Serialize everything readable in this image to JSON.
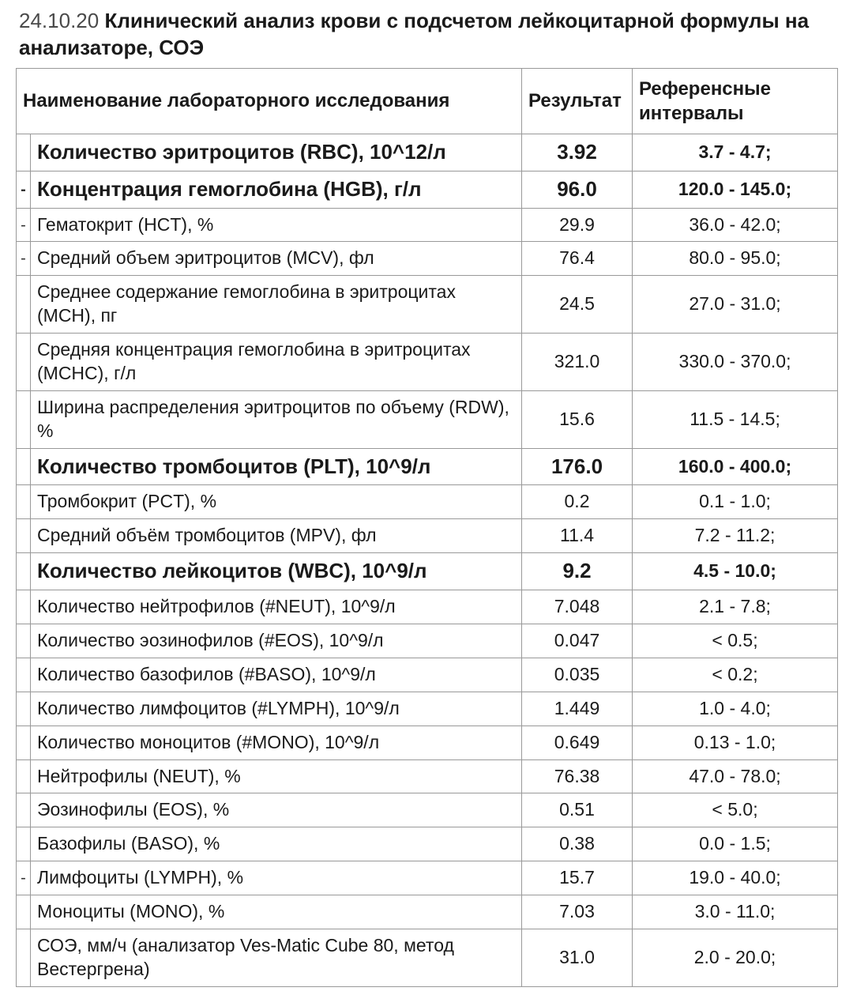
{
  "header": {
    "date": "24.10.20",
    "title": "Клинический анализ крови с подсчетом лейкоцитарной формулы на анализаторе, СОЭ"
  },
  "table": {
    "columns": {
      "name": "Наименование лабораторного исследования",
      "result": "Результат",
      "ref": "Референсные интервалы"
    },
    "rows": [
      {
        "flag": "",
        "name": "Количество эритроцитов (RBC), 10^12/л",
        "result": "3.92",
        "ref": "3.7 - 4.7;",
        "bold": true
      },
      {
        "flag": "-",
        "name": "Концентрация гемоглобина (HGB), г/л",
        "result": "96.0",
        "ref": "120.0 - 145.0;",
        "bold": true
      },
      {
        "flag": "-",
        "name": "Гематокрит (HCT), %",
        "result": "29.9",
        "ref": "36.0 - 42.0;",
        "bold": false
      },
      {
        "flag": "-",
        "name": "Средний объем эритроцитов (MCV), фл",
        "result": "76.4",
        "ref": "80.0 - 95.0;",
        "bold": false
      },
      {
        "flag": "",
        "name": "Среднее содержание гемоглобина в эритроцитах (MCH), пг",
        "result": "24.5",
        "ref": "27.0 - 31.0;",
        "bold": false
      },
      {
        "flag": "",
        "name": "Средняя концентрация гемоглобина в эритроцитах (MCHC), г/л",
        "result": "321.0",
        "ref": "330.0 - 370.0;",
        "bold": false
      },
      {
        "flag": "",
        "name": "Ширина распределения эритроцитов по объему (RDW), %",
        "result": "15.6",
        "ref": "11.5 - 14.5;",
        "bold": false
      },
      {
        "flag": "",
        "name": "Количество тромбоцитов (PLT), 10^9/л",
        "result": "176.0",
        "ref": "160.0 - 400.0;",
        "bold": true
      },
      {
        "flag": "",
        "name": "Тромбокрит (PCT), %",
        "result": "0.2",
        "ref": "0.1 - 1.0;",
        "bold": false
      },
      {
        "flag": "",
        "name": "Средний объём тромбоцитов (MPV), фл",
        "result": "11.4",
        "ref": "7.2 - 11.2;",
        "bold": false
      },
      {
        "flag": "",
        "name": "Количество лейкоцитов (WBC), 10^9/л",
        "result": "9.2",
        "ref": "4.5 - 10.0;",
        "bold": true
      },
      {
        "flag": "",
        "name": "Количество нейтрофилов (#NEUT), 10^9/л",
        "result": "7.048",
        "ref": "2.1 - 7.8;",
        "bold": false
      },
      {
        "flag": "",
        "name": "Количество эозинофилов (#EOS), 10^9/л",
        "result": "0.047",
        "ref": "< 0.5;",
        "bold": false
      },
      {
        "flag": "",
        "name": "Количество базофилов (#BASO), 10^9/л",
        "result": "0.035",
        "ref": "< 0.2;",
        "bold": false
      },
      {
        "flag": "",
        "name": "Количество лимфоцитов (#LYMPH), 10^9/л",
        "result": "1.449",
        "ref": "1.0 - 4.0;",
        "bold": false
      },
      {
        "flag": "",
        "name": "Количество моноцитов (#MONO), 10^9/л",
        "result": "0.649",
        "ref": "0.13 - 1.0;",
        "bold": false
      },
      {
        "flag": "",
        "name": "Нейтрофилы (NEUT), %",
        "result": "76.38",
        "ref": "47.0 - 78.0;",
        "bold": false
      },
      {
        "flag": "",
        "name": "Эозинофилы (EOS), %",
        "result": "0.51",
        "ref": "< 5.0;",
        "bold": false
      },
      {
        "flag": "",
        "name": "Базофилы (BASO), %",
        "result": "0.38",
        "ref": "0.0 - 1.5;",
        "bold": false
      },
      {
        "flag": "-",
        "name": "Лимфоциты (LYMPH), %",
        "result": "15.7",
        "ref": "19.0 - 40.0;",
        "bold": false
      },
      {
        "flag": "",
        "name": "Моноциты (MONO), %",
        "result": "7.03",
        "ref": "3.0 - 11.0;",
        "bold": false
      },
      {
        "flag": "",
        "name": "СОЭ, мм/ч (анализатор Ves-Matic Cube 80, метод Вестергрена)",
        "result": "31.0",
        "ref": "2.0 - 20.0;",
        "bold": false
      }
    ]
  },
  "styling": {
    "background_color": "#ffffff",
    "text_color": "#1a1a1a",
    "date_color": "#4a4a4a",
    "border_color": "#999999",
    "header_fontsize": 26,
    "cell_fontsize": 23,
    "bold_cell_fontsize": 26,
    "font_family": "Arial, Helvetica, sans-serif"
  }
}
